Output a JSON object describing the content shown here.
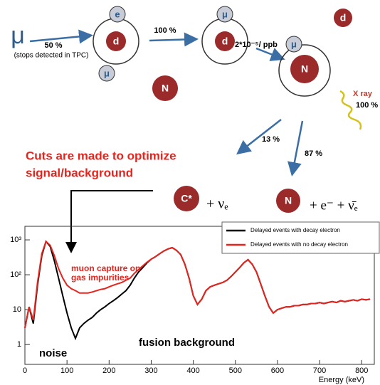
{
  "diagram": {
    "mu_in": "μ",
    "stops_pct": "50 %",
    "stops_note": "(stops detected in TPC)",
    "atom1_e": "e",
    "atom1_d": "d",
    "free_mu": "μ",
    "transfer_pct": "100 %",
    "atom2_mu": "μ",
    "atom2_d": "d",
    "impurity_rate": "2*10⁻⁵/ ppb",
    "atom3_mu": "μ",
    "atom3_n": "N",
    "lone_d": "d",
    "lone_n": "N",
    "xray": "X ray",
    "xray_pct": "100 %",
    "branch_c_pct": "13 %",
    "branch_n_pct": "87 %",
    "cuts": [
      "Cuts are made to optimize",
      "signal/background"
    ],
    "c_nucleus": "C*",
    "c_products": "+ νₑ",
    "n_nucleus": "N",
    "n_products": "+ e⁻ + ν̄ₑ"
  },
  "chart_data": {
    "type": "line",
    "x_label": "Energy (keV)",
    "annotations": [
      "muon capture on",
      "gas impurities",
      "noise",
      "fusion background"
    ],
    "x": [
      0,
      10,
      20,
      30,
      40,
      50,
      60,
      70,
      80,
      90,
      100,
      110,
      120,
      130,
      140,
      150,
      160,
      170,
      180,
      190,
      200,
      210,
      220,
      230,
      240,
      250,
      260,
      270,
      280,
      290,
      300,
      310,
      320,
      330,
      340,
      350,
      360,
      370,
      380,
      390,
      400,
      410,
      420,
      430,
      440,
      450,
      460,
      470,
      480,
      490,
      500,
      510,
      520,
      530,
      540,
      550,
      560,
      570,
      580,
      590,
      600,
      610,
      620,
      630,
      640,
      650,
      660,
      670,
      680,
      690,
      700,
      710,
      720,
      730,
      740,
      750,
      760,
      770,
      780,
      790,
      800,
      810,
      820
    ],
    "series": [
      {
        "name": "Delayed events with decay electron",
        "color": "#000000",
        "values": [
          3,
          12,
          4,
          50,
          350,
          900,
          650,
          250,
          80,
          25,
          8,
          3,
          1.5,
          3,
          4,
          5,
          6,
          8,
          10,
          12,
          15,
          18,
          22,
          28,
          35,
          50,
          80,
          120,
          160,
          220,
          280,
          330,
          400,
          480,
          550,
          600,
          500,
          380,
          200,
          80,
          25,
          14,
          20,
          35,
          45,
          50,
          55,
          60,
          70,
          90,
          120,
          160,
          220,
          270,
          200,
          120,
          55,
          25,
          12,
          8,
          10,
          11,
          12,
          12,
          13,
          13,
          14,
          14,
          15,
          15,
          16,
          15,
          16,
          17,
          16,
          18,
          17,
          18,
          19,
          18,
          20,
          19,
          20
        ]
      },
      {
        "name": "Delayed events with no decay electron",
        "color": "#e8231c",
        "values": [
          3,
          12,
          5,
          60,
          400,
          900,
          700,
          350,
          150,
          80,
          50,
          40,
          35,
          30,
          30,
          30,
          32,
          35,
          38,
          40,
          45,
          50,
          55,
          60,
          70,
          80,
          110,
          140,
          180,
          230,
          280,
          330,
          400,
          480,
          550,
          600,
          500,
          380,
          200,
          80,
          25,
          14,
          20,
          35,
          45,
          50,
          55,
          60,
          70,
          90,
          120,
          160,
          220,
          270,
          200,
          120,
          55,
          25,
          12,
          8,
          10,
          11,
          12,
          12,
          13,
          13,
          14,
          14,
          15,
          15,
          16,
          15,
          16,
          17,
          16,
          18,
          17,
          18,
          19,
          18,
          20,
          19,
          20
        ]
      }
    ],
    "xlim": [
      0,
      830
    ],
    "xticks": [
      0,
      100,
      200,
      300,
      400,
      500,
      600,
      700,
      800
    ],
    "ylim": [
      0.27,
      2450
    ],
    "yscale": "log",
    "yticks": [
      1,
      10,
      {
        "value": 100,
        "label": "10²"
      },
      {
        "value": 1000,
        "label": "10³"
      }
    ],
    "legend": "top-right"
  }
}
